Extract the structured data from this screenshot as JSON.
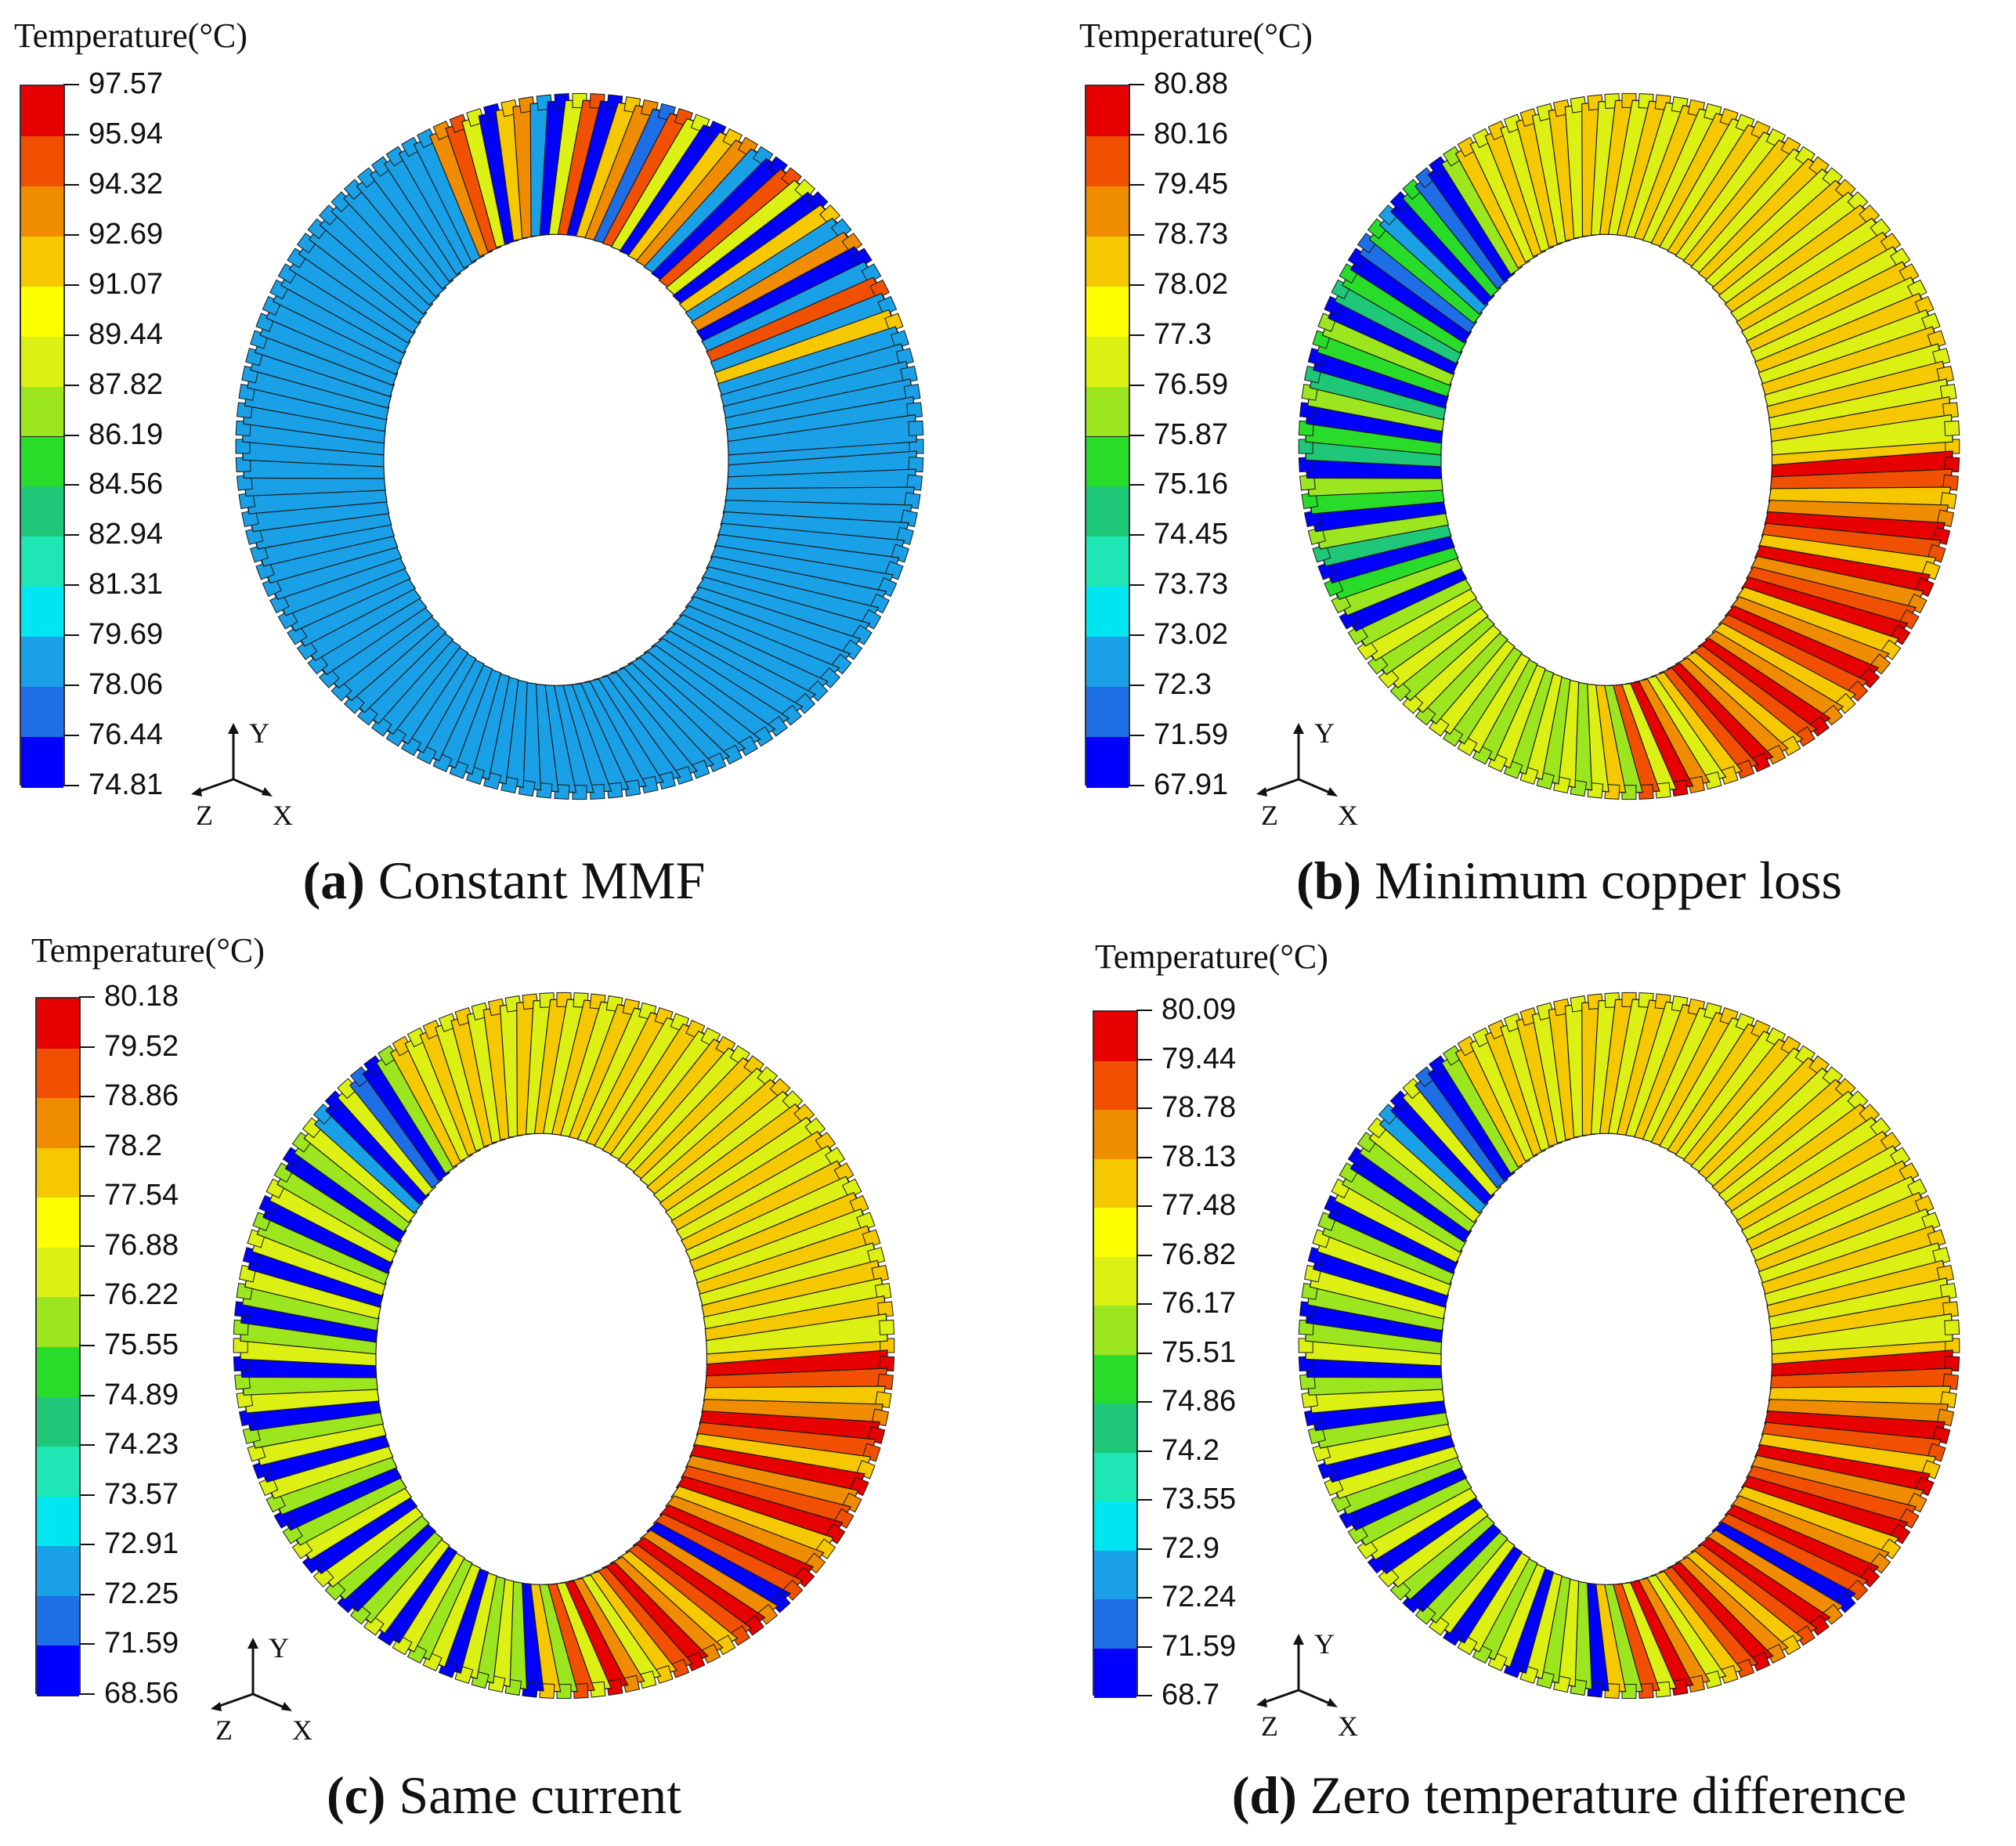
{
  "colormap": [
    "#0000ff",
    "#1e6ee6",
    "#1aa0e6",
    "#00e6f0",
    "#1ee6b4",
    "#1ec878",
    "#2adc2a",
    "#9be61e",
    "#dcf014",
    "#ffff00",
    "#f5c800",
    "#f08c00",
    "#f05000",
    "#e60000"
  ],
  "panels": [
    {
      "id": "a",
      "legend_title": "Temperature(°C)",
      "legend_values": [
        "97.57",
        "95.94",
        "94.32",
        "92.69",
        "91.07",
        "89.44",
        "87.82",
        "86.19",
        "84.56",
        "82.94",
        "81.31",
        "79.69",
        "78.06",
        "76.44",
        "74.81"
      ],
      "caption_letter": "(a)",
      "caption_text": "Constant MMF",
      "axis_labels": {
        "y": "Y",
        "z": "Z",
        "x": "X"
      },
      "coil_colors": [
        "#1aa0e6",
        "#1aa0e6",
        "#1aa0e6",
        "#1aa0e6",
        "#1aa0e6",
        "#1aa0e6",
        "#1aa0e6",
        "#1aa0e6",
        "#1aa0e6",
        "#1aa0e6",
        "#1aa0e6",
        "#1aa0e6",
        "#1aa0e6",
        "#1aa0e6",
        "#1aa0e6",
        "#1aa0e6",
        "#1aa0e6",
        "#1aa0e6",
        "#1aa0e6",
        "#1aa0e6",
        "#1aa0e6",
        "#1aa0e6",
        "#1aa0e6",
        "#1aa0e6",
        "#1aa0e6",
        "#1aa0e6",
        "#1aa0e6",
        "#1aa0e6",
        "#1aa0e6",
        "#1aa0e6",
        "#1aa0e6",
        "#1aa0e6",
        "#1aa0e6",
        "#1aa0e6",
        "#1aa0e6",
        "#1aa0e6",
        "#1aa0e6",
        "#1aa0e6",
        "#1aa0e6",
        "#1aa0e6",
        "#1aa0e6",
        "#1aa0e6",
        "#1aa0e6",
        "#1aa0e6",
        "#1aa0e6",
        "#1aa0e6",
        "#1aa0e6",
        "#1aa0e6",
        "#1aa0e6",
        "#1aa0e6",
        "#1aa0e6",
        "#1aa0e6",
        "#1aa0e6",
        "#1aa0e6",
        "#1aa0e6",
        "#1aa0e6",
        "#1aa0e6",
        "#1aa0e6",
        "#1aa0e6",
        "#1aa0e6",
        "#1aa0e6",
        "#1aa0e6",
        "#1aa0e6",
        "#1aa0e6",
        "#1aa0e6",
        "#1aa0e6",
        "#1aa0e6",
        "#1aa0e6",
        "#1aa0e6",
        "#1aa0e6",
        "#1aa0e6",
        "#1aa0e6",
        "#1aa0e6",
        "#1aa0e6",
        "#1aa0e6",
        "#1aa0e6",
        "#1aa0e6",
        "#1aa0e6",
        "#1aa0e6",
        "#1aa0e6",
        "#1aa0e6",
        "#1aa0e6",
        "#f08c00",
        "#f05000",
        "#dcf014",
        "#0000ff",
        "#f5c800",
        "#f08c00",
        "#1aa0e6",
        "#0000ff",
        "#dcf014",
        "#f05000",
        "#0000ff",
        "#f5c800",
        "#f08c00",
        "#1e6ee6",
        "#f05000",
        "#dcf014",
        "#0000ff",
        "#f5c800",
        "#f08c00",
        "#1aa0e6",
        "#0000ff",
        "#f05000",
        "#dcf014",
        "#0000ff",
        "#f5c800",
        "#1aa0e6",
        "#f08c00",
        "#0000ff",
        "#1aa0e6",
        "#f05000",
        "#1aa0e6",
        "#f5c800",
        "#1aa0e6",
        "#1aa0e6",
        "#1aa0e6",
        "#1aa0e6",
        "#1aa0e6",
        "#1aa0e6"
      ]
    },
    {
      "id": "b",
      "legend_title": "Temperature(°C)",
      "legend_values": [
        "80.88",
        "80.16",
        "79.45",
        "78.73",
        "78.02",
        "77.3",
        "76.59",
        "75.87",
        "75.16",
        "74.45",
        "73.73",
        "73.02",
        "72.3",
        "71.59",
        "67.91"
      ],
      "caption_letter": "(b)",
      "caption_text": "Minimum copper loss",
      "axis_labels": {
        "y": "Y",
        "z": "Z",
        "x": "X"
      },
      "coil_colors": [
        "#f5c800",
        "#e60000",
        "#f05000",
        "#f5c800",
        "#f08c00",
        "#e60000",
        "#f05000",
        "#f5c800",
        "#e60000",
        "#f08c00",
        "#f05000",
        "#e60000",
        "#f5c800",
        "#f08c00",
        "#e60000",
        "#f05000",
        "#f5c800",
        "#f08c00",
        "#e60000",
        "#f05000",
        "#f5c800",
        "#f08c00",
        "#e60000",
        "#f05000",
        "#f5c800",
        "#dcf014",
        "#f08c00",
        "#e60000",
        "#dcf014",
        "#f05000",
        "#9be61e",
        "#f5c800",
        "#dcf014",
        "#9be61e",
        "#dcf014",
        "#9be61e",
        "#dcf014",
        "#9be61e",
        "#dcf014",
        "#9be61e",
        "#dcf014",
        "#9be61e",
        "#dcf014",
        "#9be61e",
        "#dcf014",
        "#9be61e",
        "#dcf014",
        "#9be61e",
        "#dcf014",
        "#9be61e",
        "#0000ff",
        "#9be61e",
        "#2adc2a",
        "#0000ff",
        "#1ec878",
        "#9be61e",
        "#0000ff",
        "#2adc2a",
        "#9be61e",
        "#0000ff",
        "#1ec878",
        "#2adc2a",
        "#0000ff",
        "#9be61e",
        "#1ec878",
        "#0000ff",
        "#2adc2a",
        "#9be61e",
        "#0000ff",
        "#1ec878",
        "#2adc2a",
        "#0000ff",
        "#1e6ee6",
        "#2adc2a",
        "#1aa0e6",
        "#0000ff",
        "#2adc2a",
        "#1e6ee6",
        "#0000ff",
        "#9be61e",
        "#f5c800",
        "#dcf014",
        "#f5c800",
        "#dcf014",
        "#f5c800",
        "#dcf014",
        "#f5c800",
        "#dcf014",
        "#f5c800",
        "#dcf014",
        "#f5c800",
        "#dcf014",
        "#f5c800",
        "#dcf014",
        "#f5c800",
        "#dcf014",
        "#f5c800",
        "#dcf014",
        "#f5c800",
        "#dcf014",
        "#f5c800",
        "#dcf014",
        "#f5c800",
        "#dcf014",
        "#f5c800",
        "#dcf014",
        "#f5c800",
        "#dcf014",
        "#f5c800",
        "#dcf014",
        "#f5c800",
        "#dcf014",
        "#f5c800",
        "#dcf014",
        "#f5c800",
        "#dcf014",
        "#f5c800",
        "#dcf014",
        "#f5c800",
        "#dcf014"
      ]
    },
    {
      "id": "c",
      "legend_title": "Temperature(°C)",
      "legend_values": [
        "80.18",
        "79.52",
        "78.86",
        "78.2",
        "77.54",
        "76.88",
        "76.22",
        "75.55",
        "74.89",
        "74.23",
        "73.57",
        "72.91",
        "72.25",
        "71.59",
        "68.56"
      ],
      "caption_letter": "(c)",
      "caption_text": "Same current",
      "axis_labels": {
        "y": "Y",
        "z": "Z",
        "x": "X"
      },
      "coil_colors": [
        "#f5c800",
        "#e60000",
        "#f05000",
        "#f5c800",
        "#f08c00",
        "#e60000",
        "#f05000",
        "#f5c800",
        "#e60000",
        "#f08c00",
        "#f05000",
        "#e60000",
        "#f5c800",
        "#f08c00",
        "#e60000",
        "#f05000",
        "#0000ff",
        "#f08c00",
        "#e60000",
        "#f05000",
        "#f5c800",
        "#f08c00",
        "#e60000",
        "#f05000",
        "#f5c800",
        "#dcf014",
        "#f08c00",
        "#e60000",
        "#dcf014",
        "#f05000",
        "#9be61e",
        "#f5c800",
        "#0000ff",
        "#9be61e",
        "#dcf014",
        "#9be61e",
        "#dcf014",
        "#0000ff",
        "#dcf014",
        "#9be61e",
        "#dcf014",
        "#0000ff",
        "#dcf014",
        "#9be61e",
        "#0000ff",
        "#9be61e",
        "#dcf014",
        "#0000ff",
        "#dcf014",
        "#9be61e",
        "#0000ff",
        "#9be61e",
        "#dcf014",
        "#0000ff",
        "#dcf014",
        "#9be61e",
        "#0000ff",
        "#dcf014",
        "#9be61e",
        "#0000ff",
        "#dcf014",
        "#9be61e",
        "#0000ff",
        "#9be61e",
        "#dcf014",
        "#0000ff",
        "#dcf014",
        "#9be61e",
        "#0000ff",
        "#dcf014",
        "#9be61e",
        "#0000ff",
        "#9be61e",
        "#dcf014",
        "#1aa0e6",
        "#0000ff",
        "#dcf014",
        "#1e6ee6",
        "#0000ff",
        "#9be61e",
        "#f5c800",
        "#dcf014",
        "#f5c800",
        "#dcf014",
        "#f5c800",
        "#dcf014",
        "#f5c800",
        "#dcf014",
        "#f5c800",
        "#dcf014",
        "#f5c800",
        "#dcf014",
        "#f5c800",
        "#dcf014",
        "#f5c800",
        "#dcf014",
        "#f5c800",
        "#dcf014",
        "#f5c800",
        "#dcf014",
        "#f5c800",
        "#dcf014",
        "#f5c800",
        "#dcf014",
        "#f5c800",
        "#dcf014",
        "#f5c800",
        "#dcf014",
        "#f5c800",
        "#dcf014",
        "#f5c800",
        "#dcf014",
        "#f5c800",
        "#dcf014",
        "#f5c800",
        "#dcf014",
        "#f5c800",
        "#dcf014",
        "#f5c800",
        "#dcf014"
      ]
    },
    {
      "id": "d",
      "legend_title": "Temperature(°C)",
      "legend_values": [
        "80.09",
        "79.44",
        "78.78",
        "78.13",
        "77.48",
        "76.82",
        "76.17",
        "75.51",
        "74.86",
        "74.2",
        "73.55",
        "72.9",
        "72.24",
        "71.59",
        "68.7"
      ],
      "caption_letter": "(d)",
      "caption_text": "Zero temperature difference",
      "axis_labels": {
        "y": "Y",
        "z": "Z",
        "x": "X"
      },
      "coil_colors": [
        "#f5c800",
        "#e60000",
        "#f05000",
        "#f5c800",
        "#f08c00",
        "#e60000",
        "#f05000",
        "#f5c800",
        "#e60000",
        "#f08c00",
        "#f05000",
        "#e60000",
        "#f5c800",
        "#f08c00",
        "#e60000",
        "#f05000",
        "#0000ff",
        "#f08c00",
        "#e60000",
        "#f05000",
        "#f5c800",
        "#f08c00",
        "#e60000",
        "#f05000",
        "#f5c800",
        "#dcf014",
        "#f08c00",
        "#e60000",
        "#dcf014",
        "#f05000",
        "#9be61e",
        "#f5c800",
        "#0000ff",
        "#9be61e",
        "#dcf014",
        "#9be61e",
        "#dcf014",
        "#0000ff",
        "#dcf014",
        "#9be61e",
        "#dcf014",
        "#0000ff",
        "#dcf014",
        "#9be61e",
        "#0000ff",
        "#9be61e",
        "#dcf014",
        "#0000ff",
        "#dcf014",
        "#9be61e",
        "#0000ff",
        "#9be61e",
        "#dcf014",
        "#0000ff",
        "#dcf014",
        "#9be61e",
        "#0000ff",
        "#dcf014",
        "#9be61e",
        "#0000ff",
        "#dcf014",
        "#9be61e",
        "#0000ff",
        "#9be61e",
        "#dcf014",
        "#0000ff",
        "#dcf014",
        "#9be61e",
        "#0000ff",
        "#dcf014",
        "#9be61e",
        "#0000ff",
        "#9be61e",
        "#dcf014",
        "#1aa0e6",
        "#0000ff",
        "#dcf014",
        "#1e6ee6",
        "#0000ff",
        "#9be61e",
        "#f5c800",
        "#dcf014",
        "#f5c800",
        "#dcf014",
        "#f5c800",
        "#dcf014",
        "#f5c800",
        "#dcf014",
        "#f5c800",
        "#dcf014",
        "#f5c800",
        "#dcf014",
        "#f5c800",
        "#dcf014",
        "#f5c800",
        "#dcf014",
        "#f5c800",
        "#dcf014",
        "#f5c800",
        "#dcf014",
        "#f5c800",
        "#dcf014",
        "#f5c800",
        "#dcf014",
        "#f5c800",
        "#dcf014",
        "#f5c800",
        "#dcf014",
        "#f5c800",
        "#dcf014",
        "#f5c800",
        "#dcf014",
        "#f5c800",
        "#dcf014",
        "#f5c800",
        "#dcf014",
        "#f5c800",
        "#dcf014",
        "#f5c800",
        "#dcf014"
      ]
    }
  ]
}
